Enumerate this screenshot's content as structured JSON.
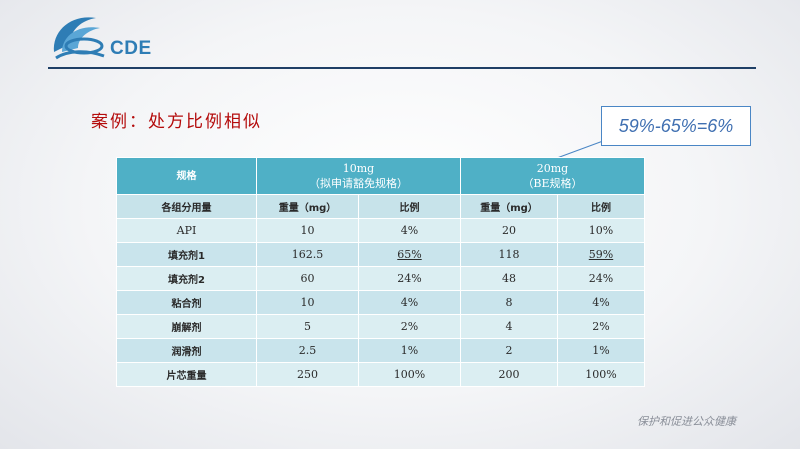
{
  "logo": {
    "text": "CDE"
  },
  "title": "案例：处方比例相似",
  "callout": "59%-65%=6%",
  "table": {
    "spec_label": "规格",
    "group_a": {
      "line1": "10mg",
      "line2": "（拟申请豁免规格）"
    },
    "group_b": {
      "line1": "20mg",
      "line2": "（BE规格）"
    },
    "subheader": {
      "component": "各组分用量",
      "weight_a": "重量（mg）",
      "ratio_a": "比例",
      "weight_b": "重量（mg）",
      "ratio_b": "比例"
    },
    "rows": [
      {
        "label": "API",
        "wa": "10",
        "ra": "4%",
        "wb": "20",
        "rb": "10%"
      },
      {
        "label": "填充剂1",
        "wa": "162.5",
        "ra": "65%",
        "wb": "118",
        "rb": "59%"
      },
      {
        "label": "填充剂2",
        "wa": "60",
        "ra": "24%",
        "wb": "48",
        "rb": "24%"
      },
      {
        "label": "粘合剂",
        "wa": "10",
        "ra": "4%",
        "wb": "8",
        "rb": "4%"
      },
      {
        "label": "崩解剂",
        "wa": "5",
        "ra": "2%",
        "wb": "4",
        "rb": "2%"
      },
      {
        "label": "润滑剂",
        "wa": "2.5",
        "ra": "1%",
        "wb": "2",
        "rb": "1%"
      },
      {
        "label": "片芯重量",
        "wa": "250",
        "ra": "100%",
        "wb": "200",
        "rb": "100%"
      }
    ]
  },
  "footer": "保护和促进公众健康",
  "colors": {
    "header_teal": "#4fb0c6",
    "row_light": "#dbeef2",
    "row_dark": "#c9e4ec",
    "title_red": "#b40b0b",
    "rule_navy": "#1f3f66",
    "logo_blue": "#2e7db5"
  }
}
